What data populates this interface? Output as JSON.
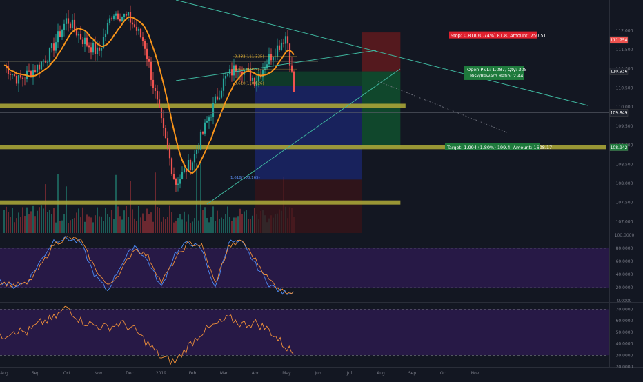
{
  "chart_data": [
    {
      "type": "candlestick",
      "title": "",
      "x_tick_labels": [
        "Aug",
        "Sep",
        "Oct",
        "Nov",
        "Dec",
        "2019",
        "Feb",
        "Mar",
        "Apr",
        "May",
        "Jun",
        "Jul",
        "Aug",
        "Sep",
        "Oct",
        "Nov"
      ],
      "y_tick_labels": [
        "112.000",
        "111.500",
        "111.000",
        "110.500",
        "110.000",
        "109.500",
        "109.000",
        "108.500",
        "108.000",
        "107.500",
        "107.000"
      ],
      "ylim": [
        106.7,
        112.8
      ],
      "price_path": [
        [
          "2018-08-01",
          111.1
        ],
        [
          "2018-08-15",
          110.7
        ],
        [
          "2018-09-01",
          111.0
        ],
        [
          "2018-09-15",
          111.4
        ],
        [
          "2018-10-01",
          112.3
        ],
        [
          "2018-10-15",
          111.8
        ],
        [
          "2018-11-01",
          111.4
        ],
        [
          "2018-11-15",
          112.5
        ],
        [
          "2018-12-01",
          112.3
        ],
        [
          "2018-12-15",
          111.7
        ],
        [
          "2019-01-01",
          109.6
        ],
        [
          "2019-01-15",
          108.0
        ],
        [
          "2019-02-01",
          108.6
        ],
        [
          "2019-02-15",
          109.6
        ],
        [
          "2019-03-01",
          110.7
        ],
        [
          "2019-03-15",
          111.1
        ],
        [
          "2019-04-01",
          110.7
        ],
        [
          "2019-04-15",
          111.3
        ],
        [
          "2019-05-01",
          111.9
        ],
        [
          "2019-05-10",
          110.0
        ]
      ],
      "moving_average_color": "#f7931a",
      "candle_up_color": "#26a69a",
      "candle_down_color": "#ef5350",
      "horizontal_levels": [
        111.2,
        110.0,
        108.9,
        107.5
      ],
      "fib_labels": [
        "0.382(111.325)",
        "0.5(110.992)",
        "0.618(110.626)",
        "1.618(108.165)"
      ],
      "stop_label": "Stop: 0.818 (0.74%) 81.8, Amount: 750.51",
      "target_label": "Target: 1.994 (1.80%) 199.4, Amount: 1608.17",
      "position_label": [
        "Open P&L: 1.087, Qty: 305",
        "Risk/Reward Ratio: 2.44"
      ],
      "price_tags": [
        {
          "text": "111.754",
          "value": 111.754,
          "color": "#ef5350"
        },
        {
          "text": "110.936",
          "value": 110.936,
          "color": "#1e222d"
        },
        {
          "text": "109.849",
          "value": 109.849,
          "color": "#1e222d"
        },
        {
          "text": "108.942",
          "value": 108.942,
          "color": "#1e7a3c"
        }
      ]
    },
    {
      "type": "line",
      "title": "",
      "y_tick_labels": [
        "100.0000",
        "80.0000",
        "60.0000",
        "40.0000",
        "20.0000",
        "0.0000"
      ],
      "ylim": [
        0,
        100
      ],
      "bands": [
        20,
        80
      ],
      "series": [
        {
          "color": "#4e8cf5",
          "values": [
            30,
            22,
            28,
            60,
            92,
            95,
            88,
            40,
            15,
            55,
            85,
            60,
            20,
            72,
            90,
            78,
            18,
            90,
            88,
            55,
            25,
            12,
            14
          ]
        },
        {
          "color": "#f0903a",
          "values": [
            28,
            24,
            25,
            52,
            86,
            96,
            92,
            52,
            22,
            45,
            80,
            68,
            28,
            62,
            88,
            84,
            26,
            82,
            92,
            62,
            32,
            15,
            13
          ]
        }
      ]
    },
    {
      "type": "line",
      "title": "",
      "y_tick_labels": [
        "70.0000",
        "60.0000",
        "50.0000",
        "40.0000",
        "30.0000",
        "20.0000"
      ],
      "ylim": [
        20,
        75
      ],
      "bands": [
        30,
        70
      ],
      "series": [
        {
          "color": "#f0903a",
          "values": [
            45,
            52,
            50,
            58,
            62,
            72,
            60,
            56,
            54,
            58,
            52,
            40,
            28,
            24,
            38,
            50,
            56,
            62,
            57,
            58,
            52,
            40,
            30
          ]
        }
      ]
    }
  ]
}
